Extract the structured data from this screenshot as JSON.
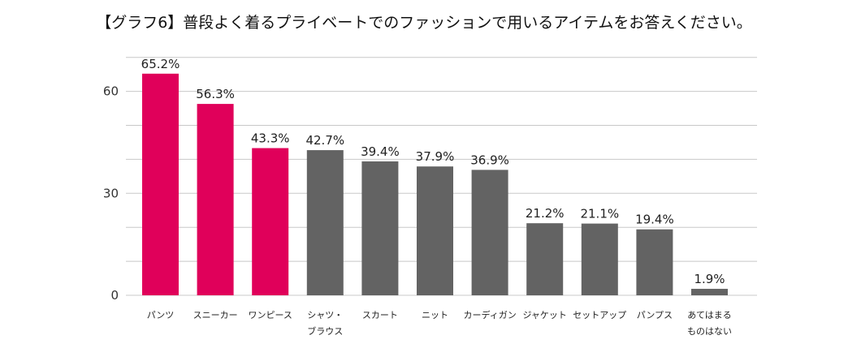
{
  "chart_data": {
    "type": "bar",
    "title": "【グラフ6】普段よく着るプライベートでのファッションで用いるアイテムをお答えください。",
    "categories": [
      [
        "パンツ"
      ],
      [
        "スニーカー"
      ],
      [
        "ワンピース"
      ],
      [
        "シャツ・",
        "ブラウス"
      ],
      [
        "スカート"
      ],
      [
        "ニット"
      ],
      [
        "カーディガン"
      ],
      [
        "ジャケット"
      ],
      [
        "セットアップ"
      ],
      [
        "パンプス"
      ],
      [
        "あてはまる",
        "ものはない"
      ]
    ],
    "values": [
      65.2,
      56.3,
      43.3,
      42.7,
      39.4,
      37.9,
      36.9,
      21.2,
      21.1,
      19.4,
      1.9
    ],
    "value_labels": [
      "65.2%",
      "56.3%",
      "43.3%",
      "42.7%",
      "39.4%",
      "37.9%",
      "36.9%",
      "21.2%",
      "21.1%",
      "19.4%",
      "1.9%"
    ],
    "highlight_count": 3,
    "colors": {
      "highlight": "#e0005a",
      "default": "#636363",
      "grid": "#c8c8c8"
    },
    "yticks": [
      0,
      30,
      60
    ],
    "ylim": [
      0,
      70
    ],
    "grid": true,
    "xlabel": "",
    "ylabel": ""
  }
}
